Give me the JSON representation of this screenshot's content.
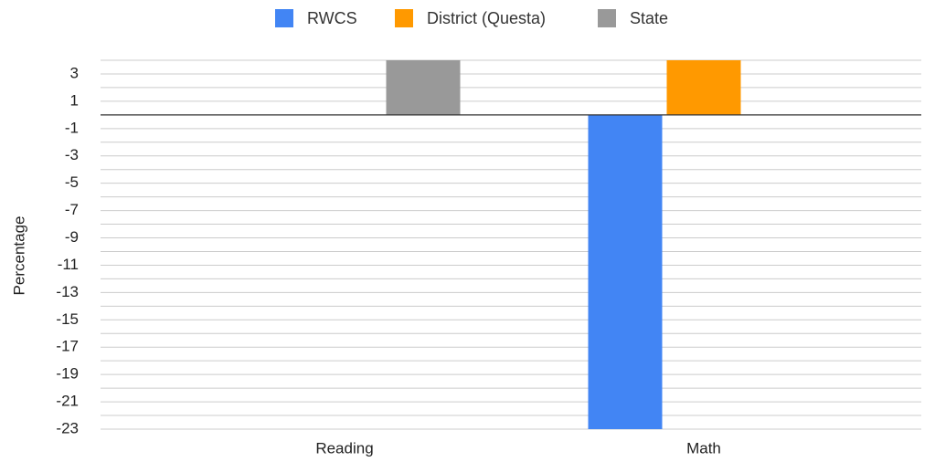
{
  "chart_data": {
    "type": "bar",
    "y_axis_label": "Percentage",
    "categories": [
      "Reading",
      "Math"
    ],
    "series": [
      {
        "name": "RWCS",
        "color": "#4285f4",
        "values": [
          0,
          -23
        ]
      },
      {
        "name": "District (Questa)",
        "color": "#ff9900",
        "values": [
          0,
          4
        ]
      },
      {
        "name": "State",
        "color": "#999999",
        "values": [
          4,
          0
        ]
      }
    ],
    "ylim": [
      -23,
      4
    ],
    "yticks": [
      3,
      1,
      -1,
      -3,
      -5,
      -7,
      -9,
      -11,
      -13,
      -15,
      -17,
      -19,
      -21,
      -23
    ],
    "minor_yticks": [
      4,
      2,
      0,
      -2,
      -4,
      -6,
      -8,
      -10,
      -12,
      -14,
      -16,
      -18,
      -20,
      -22
    ],
    "grid": true,
    "legend": "top"
  }
}
